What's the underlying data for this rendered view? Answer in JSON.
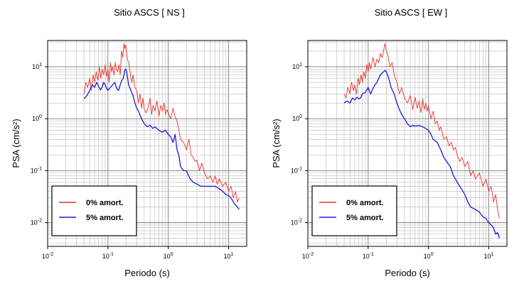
{
  "chart_data": [
    {
      "type": "line",
      "title": "Sitio ASCS [ NS ]",
      "xlabel": "Periodo (s)",
      "ylabel": "PSA (cm/s²)",
      "xscale": "log",
      "yscale": "log",
      "xlim": [
        0.01,
        20
      ],
      "ylim": [
        0.0035,
        32
      ],
      "xticks": [
        {
          "value": 0.01,
          "base": "10",
          "exp": "-2"
        },
        {
          "value": 0.1,
          "base": "10",
          "exp": "-1"
        },
        {
          "value": 1,
          "base": "10",
          "exp": "0"
        },
        {
          "value": 10,
          "base": "10",
          "exp": "1"
        }
      ],
      "yticks": [
        {
          "value": 0.01,
          "base": "10",
          "exp": "-2"
        },
        {
          "value": 0.1,
          "base": "10",
          "exp": "-1"
        },
        {
          "value": 1,
          "base": "10",
          "exp": "0"
        },
        {
          "value": 10,
          "base": "10",
          "exp": "1"
        }
      ],
      "grid": true,
      "legend_position": "bottom-left",
      "series": [
        {
          "name": "0% amort.",
          "color": "#e8312a",
          "x": [
            0.04,
            0.043,
            0.046,
            0.05,
            0.053,
            0.057,
            0.06,
            0.064,
            0.068,
            0.072,
            0.076,
            0.08,
            0.085,
            0.09,
            0.095,
            0.1,
            0.105,
            0.11,
            0.115,
            0.12,
            0.126,
            0.132,
            0.138,
            0.145,
            0.152,
            0.16,
            0.168,
            0.176,
            0.185,
            0.19,
            0.195,
            0.2,
            0.21,
            0.22,
            0.23,
            0.24,
            0.25,
            0.26,
            0.28,
            0.3,
            0.32,
            0.34,
            0.36,
            0.38,
            0.4,
            0.43,
            0.46,
            0.5,
            0.53,
            0.56,
            0.6,
            0.65,
            0.7,
            0.75,
            0.8,
            0.85,
            0.9,
            0.95,
            1.0,
            1.1,
            1.2,
            1.3,
            1.4,
            1.5,
            1.6,
            1.8,
            2.0,
            2.2,
            2.4,
            2.6,
            2.8,
            3.0,
            3.3,
            3.6,
            4.0,
            4.5,
            5.0,
            5.5,
            6.0,
            6.5,
            7.0,
            8.0,
            9.0,
            10.0,
            11.0,
            12.0,
            13.0,
            14.0,
            15.0
          ],
          "y": [
            3.0,
            5.0,
            4.0,
            6.0,
            3.5,
            7.0,
            5.0,
            8.0,
            5.5,
            10.0,
            6.0,
            9.0,
            7.0,
            11.0,
            6.5,
            9.0,
            5.0,
            12.0,
            8.0,
            10.0,
            7.0,
            12.0,
            9.0,
            8.0,
            11.0,
            7.0,
            20.0,
            15.0,
            28.0,
            22.0,
            26.0,
            24.0,
            14.0,
            12.0,
            9.0,
            6.0,
            5.0,
            7.0,
            4.0,
            3.5,
            2.0,
            3.0,
            1.6,
            2.5,
            1.5,
            1.3,
            1.6,
            2.5,
            1.2,
            1.8,
            1.4,
            2.2,
            1.1,
            1.8,
            1.4,
            2.0,
            1.2,
            1.5,
            1.3,
            1.0,
            1.6,
            1.1,
            0.9,
            0.6,
            0.4,
            0.35,
            0.25,
            0.4,
            0.2,
            0.18,
            0.15,
            0.16,
            0.1,
            0.14,
            0.09,
            0.07,
            0.08,
            0.06,
            0.08,
            0.055,
            0.07,
            0.05,
            0.06,
            0.04,
            0.05,
            0.03,
            0.04,
            0.025,
            0.03
          ]
        },
        {
          "name": "5% amort.",
          "color": "#1a1adc",
          "x": [
            0.04,
            0.045,
            0.05,
            0.055,
            0.06,
            0.065,
            0.07,
            0.075,
            0.08,
            0.085,
            0.09,
            0.095,
            0.1,
            0.11,
            0.12,
            0.13,
            0.14,
            0.15,
            0.16,
            0.17,
            0.18,
            0.19,
            0.2,
            0.21,
            0.22,
            0.24,
            0.26,
            0.28,
            0.3,
            0.33,
            0.36,
            0.4,
            0.45,
            0.5,
            0.55,
            0.6,
            0.7,
            0.8,
            0.9,
            1.0,
            1.1,
            1.2,
            1.3,
            1.4,
            1.5,
            1.6,
            1.8,
            2.0,
            2.3,
            2.6,
            3.0,
            3.5,
            4.0,
            5.0,
            6.0,
            7.0,
            8.0,
            9.0,
            10.0,
            11.0,
            12.0,
            13.0,
            14.0,
            15.0
          ],
          "y": [
            2.4,
            2.8,
            3.5,
            4.5,
            4.0,
            5.0,
            4.2,
            3.6,
            4.0,
            5.0,
            4.5,
            3.8,
            3.5,
            4.0,
            4.5,
            5.0,
            3.8,
            3.5,
            4.5,
            5.5,
            6.0,
            8.5,
            9.0,
            6.5,
            4.5,
            3.5,
            2.8,
            2.0,
            1.6,
            1.3,
            1.0,
            0.8,
            0.7,
            0.75,
            0.65,
            0.7,
            0.6,
            0.55,
            0.6,
            0.5,
            0.45,
            0.35,
            0.5,
            0.25,
            0.2,
            0.12,
            0.1,
            0.1,
            0.07,
            0.06,
            0.055,
            0.05,
            0.05,
            0.05,
            0.05,
            0.045,
            0.04,
            0.035,
            0.033,
            0.03,
            0.025,
            0.022,
            0.02,
            0.018
          ]
        }
      ]
    },
    {
      "type": "line",
      "title": "Sitio ASCS [ EW ]",
      "xlabel": "Periodo (s)",
      "ylabel": "PSA (cm/s²)",
      "xscale": "log",
      "yscale": "log",
      "xlim": [
        0.01,
        20
      ],
      "ylim": [
        0.0035,
        32
      ],
      "xticks": [
        {
          "value": 0.01,
          "base": "10",
          "exp": "-2"
        },
        {
          "value": 0.1,
          "base": "10",
          "exp": "-1"
        },
        {
          "value": 1,
          "base": "10",
          "exp": "0"
        },
        {
          "value": 10,
          "base": "10",
          "exp": "1"
        }
      ],
      "yticks": [
        {
          "value": 0.01,
          "base": "10",
          "exp": "-2"
        },
        {
          "value": 0.1,
          "base": "10",
          "exp": "-1"
        },
        {
          "value": 1,
          "base": "10",
          "exp": "0"
        },
        {
          "value": 10,
          "base": "10",
          "exp": "1"
        }
      ],
      "grid": true,
      "legend_position": "bottom-left",
      "series": [
        {
          "name": "0% amort.",
          "color": "#e8312a",
          "x": [
            0.04,
            0.043,
            0.046,
            0.05,
            0.053,
            0.057,
            0.06,
            0.064,
            0.068,
            0.072,
            0.076,
            0.08,
            0.085,
            0.09,
            0.095,
            0.1,
            0.105,
            0.11,
            0.12,
            0.13,
            0.14,
            0.15,
            0.16,
            0.17,
            0.18,
            0.19,
            0.2,
            0.21,
            0.22,
            0.23,
            0.25,
            0.27,
            0.3,
            0.33,
            0.36,
            0.4,
            0.45,
            0.5,
            0.55,
            0.6,
            0.65,
            0.7,
            0.75,
            0.8,
            0.85,
            0.9,
            0.95,
            1.0,
            1.1,
            1.2,
            1.3,
            1.4,
            1.5,
            1.6,
            1.8,
            2.0,
            2.2,
            2.4,
            2.6,
            2.8,
            3.0,
            3.3,
            3.6,
            4.0,
            4.5,
            5.0,
            5.5,
            6.0,
            7.0,
            8.0,
            9.0,
            10.0,
            11.0,
            12.0,
            13.0,
            14.0,
            15.0
          ],
          "y": [
            3.0,
            2.5,
            4.0,
            3.0,
            5.0,
            3.5,
            4.5,
            3.0,
            6.0,
            4.5,
            7.0,
            5.0,
            8.0,
            6.0,
            11.0,
            8.0,
            12.0,
            9.0,
            15.0,
            10.0,
            14.0,
            12.0,
            18.0,
            15.0,
            20.0,
            28.0,
            20.0,
            18.0,
            13.0,
            10.0,
            12.0,
            7.0,
            5.0,
            3.0,
            4.0,
            2.5,
            2.0,
            2.8,
            1.5,
            2.6,
            1.6,
            2.2,
            1.3,
            2.4,
            1.5,
            2.0,
            1.4,
            1.8,
            1.0,
            1.4,
            0.8,
            0.9,
            0.6,
            0.7,
            0.4,
            0.45,
            0.3,
            0.35,
            0.25,
            0.28,
            0.2,
            0.15,
            0.18,
            0.12,
            0.15,
            0.08,
            0.1,
            0.07,
            0.09,
            0.05,
            0.07,
            0.04,
            0.05,
            0.025,
            0.035,
            0.018,
            0.012
          ]
        },
        {
          "name": "5% amort.",
          "color": "#1a1adc",
          "x": [
            0.04,
            0.045,
            0.05,
            0.055,
            0.06,
            0.065,
            0.07,
            0.075,
            0.08,
            0.09,
            0.1,
            0.11,
            0.12,
            0.13,
            0.14,
            0.15,
            0.16,
            0.17,
            0.18,
            0.19,
            0.2,
            0.22,
            0.24,
            0.27,
            0.3,
            0.33,
            0.36,
            0.4,
            0.45,
            0.5,
            0.55,
            0.6,
            0.7,
            0.8,
            0.9,
            1.0,
            1.1,
            1.2,
            1.4,
            1.6,
            1.8,
            2.0,
            2.3,
            2.6,
            3.0,
            3.5,
            4.0,
            4.5,
            5.0,
            6.0,
            7.0,
            8.0,
            9.0,
            10.0,
            11.0,
            12.0,
            13.0,
            14.0,
            15.0
          ],
          "y": [
            2.0,
            2.2,
            2.0,
            2.5,
            2.3,
            2.6,
            2.4,
            2.5,
            3.0,
            3.2,
            4.0,
            3.0,
            3.8,
            4.5,
            5.0,
            6.0,
            7.0,
            7.5,
            8.0,
            8.5,
            8.0,
            6.0,
            4.0,
            3.0,
            2.0,
            1.5,
            1.2,
            1.0,
            0.8,
            0.7,
            0.75,
            0.72,
            0.74,
            0.7,
            0.65,
            0.6,
            0.5,
            0.4,
            0.35,
            0.25,
            0.18,
            0.15,
            0.12,
            0.08,
            0.06,
            0.045,
            0.035,
            0.025,
            0.02,
            0.018,
            0.016,
            0.013,
            0.012,
            0.01,
            0.009,
            0.008,
            0.006,
            0.0065,
            0.005
          ]
        }
      ]
    }
  ]
}
